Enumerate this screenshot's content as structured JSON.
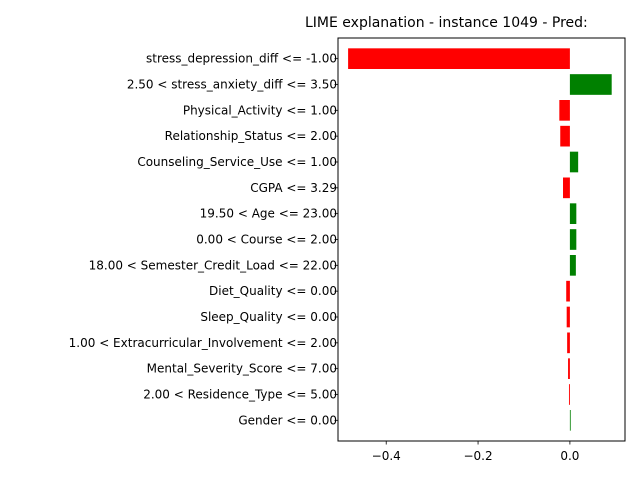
{
  "chart_data": {
    "type": "bar",
    "orientation": "horizontal",
    "title": "LIME explanation - instance 1049 - Pred:",
    "xlabel": "",
    "ylabel": "",
    "xlim": [
      -0.505,
      0.12
    ],
    "xticks": [
      -0.4,
      -0.2,
      0.0
    ],
    "xtick_labels": [
      "−0.4",
      "−0.2",
      "0.0"
    ],
    "grid": false,
    "legend": "none",
    "colors": {
      "positive": "#008000",
      "negative": "#ff0000"
    },
    "categories": [
      "stress_depression_diff <= -1.00",
      "2.50 < stress_anxiety_diff <= 3.50",
      "Physical_Activity <= 1.00",
      "Relationship_Status <= 2.00",
      "Counseling_Service_Use <= 1.00",
      "CGPA <= 3.29",
      "19.50 < Age <= 23.00",
      "0.00 < Course <= 2.00",
      "18.00 < Semester_Credit_Load <= 22.00",
      "Diet_Quality <= 0.00",
      "Sleep_Quality <= 0.00",
      "1.00 < Extracurricular_Involvement <= 2.00",
      "Mental_Severity_Score <= 7.00",
      "2.00 < Residence_Type <= 5.00",
      "Gender <= 0.00"
    ],
    "values": [
      -0.483,
      0.091,
      -0.023,
      -0.021,
      0.018,
      -0.015,
      0.014,
      0.014,
      0.013,
      -0.008,
      -0.007,
      -0.006,
      -0.004,
      -0.002,
      0.001
    ]
  }
}
